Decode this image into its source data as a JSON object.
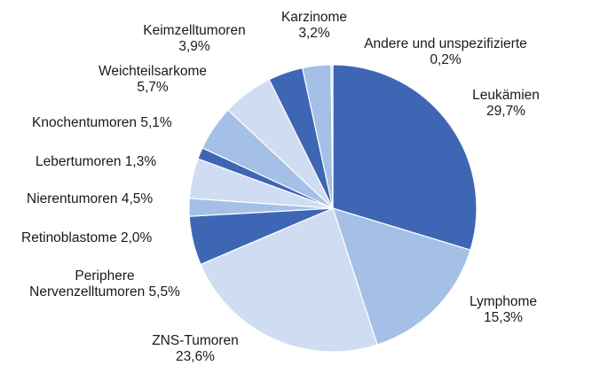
{
  "chart_data": {
    "type": "pie",
    "title": "",
    "slices": [
      {
        "label": "Leukämien",
        "value_text": "29,7%",
        "value": 29.7,
        "color": "#3f66b5"
      },
      {
        "label": "Lymphome",
        "value_text": "15,3%",
        "value": 15.3,
        "color": "#a4c0e6"
      },
      {
        "label": "ZNS-Tumoren",
        "value_text": "23,6%",
        "value": 23.6,
        "color": "#cfdcf1"
      },
      {
        "label": "Periphere Nervenzelltumoren",
        "value_text": "5,5%",
        "value": 5.5,
        "color": "#3f66b5"
      },
      {
        "label": "Retinoblastome",
        "value_text": "2,0%",
        "value": 2.0,
        "color": "#a4c0e6"
      },
      {
        "label": "Nierentumoren",
        "value_text": "4,5%",
        "value": 4.5,
        "color": "#cfdcf1"
      },
      {
        "label": "Lebertumoren",
        "value_text": "1,3%",
        "value": 1.3,
        "color": "#3f66b5"
      },
      {
        "label": "Knochentumoren",
        "value_text": "5,1%",
        "value": 5.1,
        "color": "#a4c0e6"
      },
      {
        "label": "Weichteilsarkome",
        "value_text": "5,7%",
        "value": 5.7,
        "color": "#cfdcf1"
      },
      {
        "label": "Keimzelltumoren",
        "value_text": "3,9%",
        "value": 3.9,
        "color": "#3f66b5"
      },
      {
        "label": "Karzinome",
        "value_text": "3,2%",
        "value": 3.2,
        "color": "#a4c0e6"
      },
      {
        "label": "Andere und unspezifizierte",
        "value_text": "0,2%",
        "value": 0.2,
        "color": "#cfdcf1"
      }
    ],
    "start_angle_deg": 0,
    "direction": "clockwise"
  }
}
